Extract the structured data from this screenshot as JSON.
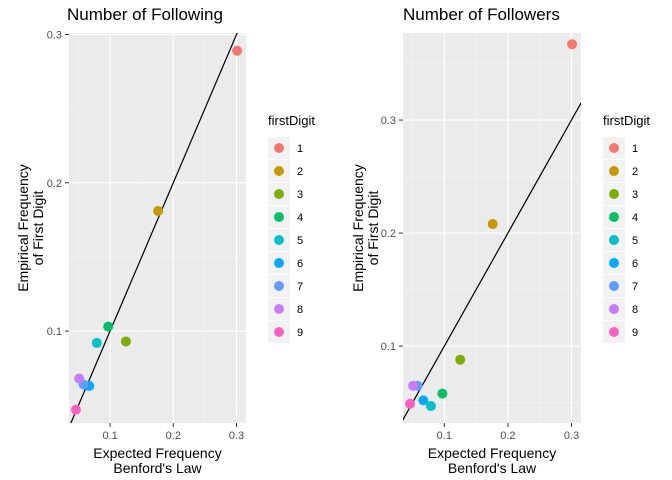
{
  "chart_data": [
    {
      "type": "scatter",
      "title": "Number of Following",
      "xlabel": [
        "Expected Frequency",
        "Benford's Law"
      ],
      "ylabel": [
        "Empirical Frequency",
        "of First Digit"
      ],
      "xlim": [
        0.035,
        0.315
      ],
      "ylim": [
        0.038,
        0.301
      ],
      "xticks": [
        0.1,
        0.2,
        0.3
      ],
      "yticks": [
        0.1,
        0.2,
        0.3
      ],
      "grid": true,
      "reference_line": "y = x",
      "legend": {
        "title": "firstDigit",
        "placement": "right"
      },
      "series": [
        {
          "name": "1",
          "color": "#F8766D",
          "x": 0.301,
          "y": 0.289
        },
        {
          "name": "2",
          "color": "#C49A00",
          "x": 0.176,
          "y": 0.181
        },
        {
          "name": "3",
          "color": "#7CAE00",
          "x": 0.125,
          "y": 0.093
        },
        {
          "name": "4",
          "color": "#00BE67",
          "x": 0.097,
          "y": 0.103
        },
        {
          "name": "5",
          "color": "#00BFC4",
          "x": 0.079,
          "y": 0.092
        },
        {
          "name": "6",
          "color": "#00A9FF",
          "x": 0.067,
          "y": 0.063
        },
        {
          "name": "7",
          "color": "#619CFF",
          "x": 0.058,
          "y": 0.064
        },
        {
          "name": "8",
          "color": "#C77CFF",
          "x": 0.051,
          "y": 0.068
        },
        {
          "name": "9",
          "color": "#FF61C3",
          "x": 0.046,
          "y": 0.047
        }
      ]
    },
    {
      "type": "scatter",
      "title": "Number of Followers",
      "xlabel": [
        "Expected Frequency",
        "Benford's Law"
      ],
      "ylabel": [
        "Empirical Frequency",
        "of First Digit"
      ],
      "xlim": [
        0.035,
        0.315
      ],
      "ylim": [
        0.032,
        0.377
      ],
      "xticks": [
        0.1,
        0.2,
        0.3
      ],
      "yticks": [
        0.1,
        0.2,
        0.3
      ],
      "grid": true,
      "reference_line": "y = x",
      "legend": {
        "title": "firstDigit",
        "placement": "right"
      },
      "series": [
        {
          "name": "1",
          "color": "#F8766D",
          "x": 0.301,
          "y": 0.367
        },
        {
          "name": "2",
          "color": "#C49A00",
          "x": 0.176,
          "y": 0.208
        },
        {
          "name": "3",
          "color": "#7CAE00",
          "x": 0.125,
          "y": 0.088
        },
        {
          "name": "4",
          "color": "#00BE67",
          "x": 0.097,
          "y": 0.058
        },
        {
          "name": "5",
          "color": "#00BFC4",
          "x": 0.079,
          "y": 0.047
        },
        {
          "name": "6",
          "color": "#00A9FF",
          "x": 0.067,
          "y": 0.052
        },
        {
          "name": "7",
          "color": "#619CFF",
          "x": 0.058,
          "y": 0.065
        },
        {
          "name": "8",
          "color": "#C77CFF",
          "x": 0.051,
          "y": 0.065
        },
        {
          "name": "9",
          "color": "#FF61C3",
          "x": 0.046,
          "y": 0.049
        }
      ]
    }
  ]
}
